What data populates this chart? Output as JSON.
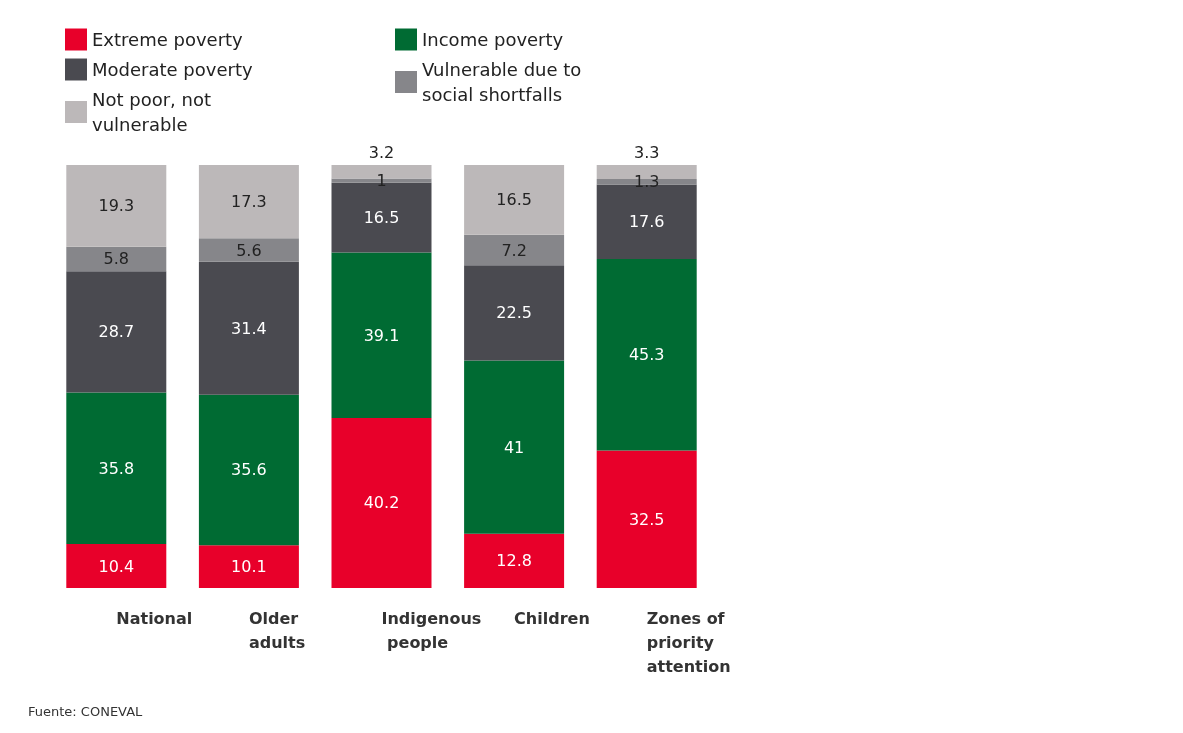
{
  "chart_data": {
    "type": "bar",
    "stacked": true,
    "data_labels": true,
    "legend": "top left",
    "categories": [
      "National",
      "Older adults",
      "Indigenous people",
      "Children",
      "Zones of priority attention"
    ],
    "series": [
      {
        "name": "Extreme poverty",
        "color": "#e8002a",
        "values": [
          10.4,
          10.1,
          40.2,
          12.8,
          32.5
        ]
      },
      {
        "name": "Income poverty",
        "color": "#006b33",
        "values": [
          35.8,
          35.6,
          39.1,
          41,
          45.3
        ]
      },
      {
        "name": "Moderate poverty",
        "color": "#4a4a50",
        "values": [
          28.7,
          31.4,
          16.5,
          22.5,
          17.6
        ]
      },
      {
        "name": "Vulnerable due to social shortfalls",
        "color": "#86868a",
        "values": [
          5.8,
          5.6,
          1,
          7.2,
          1.3
        ]
      },
      {
        "name": "Not poor, not vulnerable",
        "color": "#bcb8b9",
        "values": [
          19.3,
          17.3,
          3.2,
          16.5,
          3.3
        ]
      }
    ],
    "annotations": [
      "Fuente: CONEVAL"
    ]
  }
}
